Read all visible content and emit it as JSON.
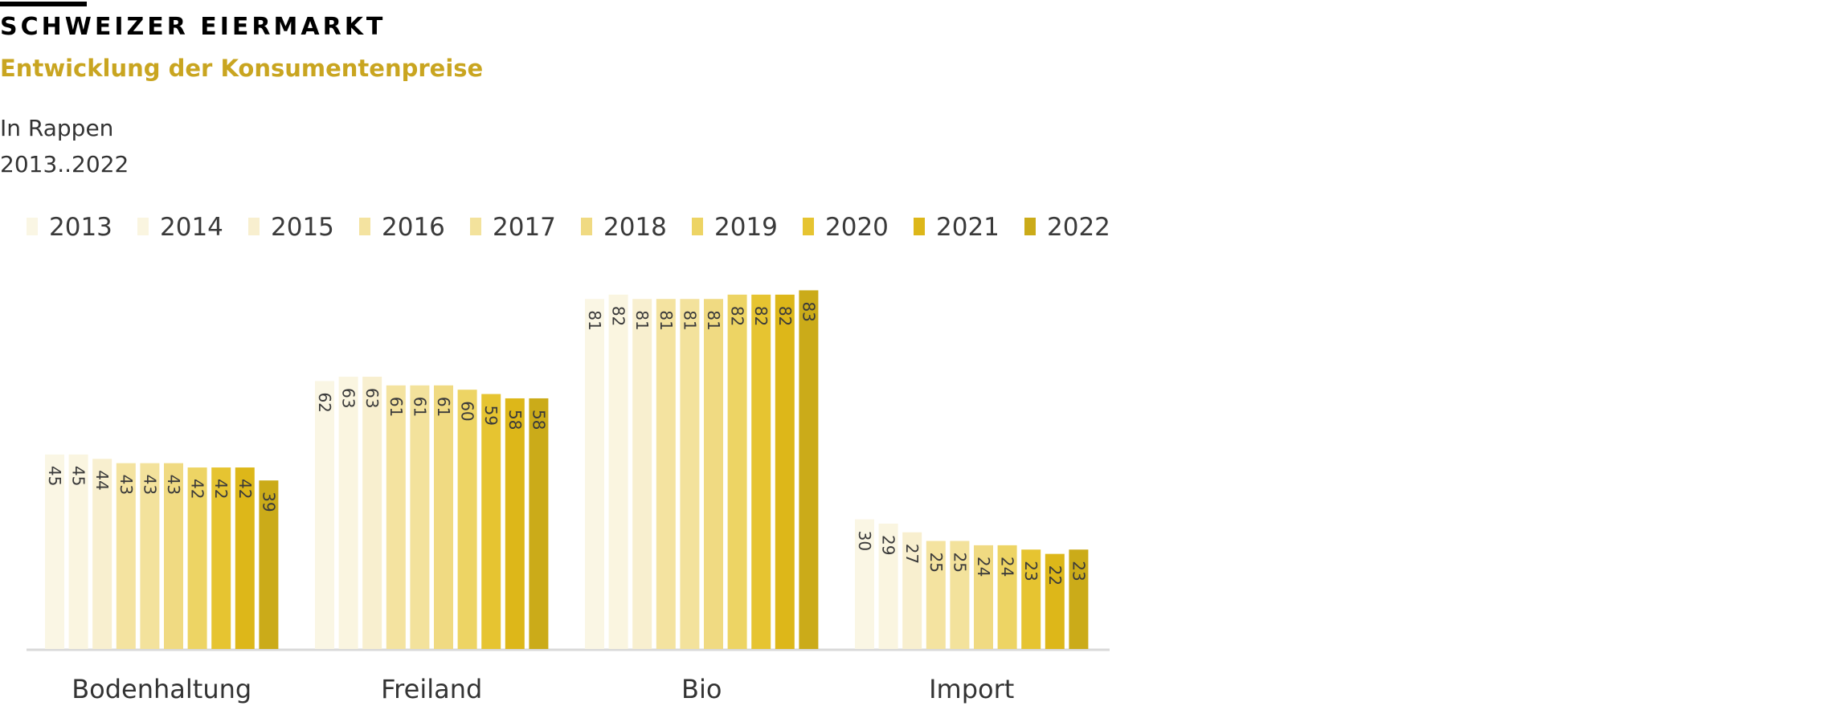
{
  "header": {
    "title": "SCHWEIZER EIERMARKT",
    "subtitle": "Entwicklung der Konsumentenpreise",
    "unit_note": "In Rappen",
    "period_note": "2013..2022"
  },
  "chart_data": {
    "type": "bar",
    "title": "SCHWEIZER EIERMARKT",
    "subtitle": "Entwicklung der Konsumentenpreise",
    "ylabel": "In Rappen",
    "categories": [
      "Bodenhaltung",
      "Freiland",
      "Bio",
      "Import"
    ],
    "ylim": [
      0,
      85
    ],
    "grid": false,
    "legend_position": "top-left",
    "series": [
      {
        "name": "2013",
        "color": "#faf6e4",
        "values": [
          45,
          62,
          81,
          30
        ]
      },
      {
        "name": "2014",
        "color": "#faf5e0",
        "values": [
          45,
          63,
          82,
          29
        ]
      },
      {
        "name": "2015",
        "color": "#f8efcf",
        "values": [
          44,
          63,
          81,
          27
        ]
      },
      {
        "name": "2016",
        "color": "#f4e3a0",
        "values": [
          43,
          61,
          81,
          25
        ]
      },
      {
        "name": "2017",
        "color": "#f3e29c",
        "values": [
          43,
          61,
          81,
          25
        ]
      },
      {
        "name": "2018",
        "color": "#f0da82",
        "values": [
          43,
          61,
          81,
          24
        ]
      },
      {
        "name": "2019",
        "color": "#edd464",
        "values": [
          42,
          60,
          82,
          24
        ]
      },
      {
        "name": "2020",
        "color": "#e6c431",
        "values": [
          42,
          59,
          82,
          23
        ]
      },
      {
        "name": "2021",
        "color": "#ddb719",
        "values": [
          42,
          58,
          82,
          22
        ]
      },
      {
        "name": "2022",
        "color": "#cbab19",
        "values": [
          39,
          58,
          83,
          23
        ]
      }
    ]
  }
}
